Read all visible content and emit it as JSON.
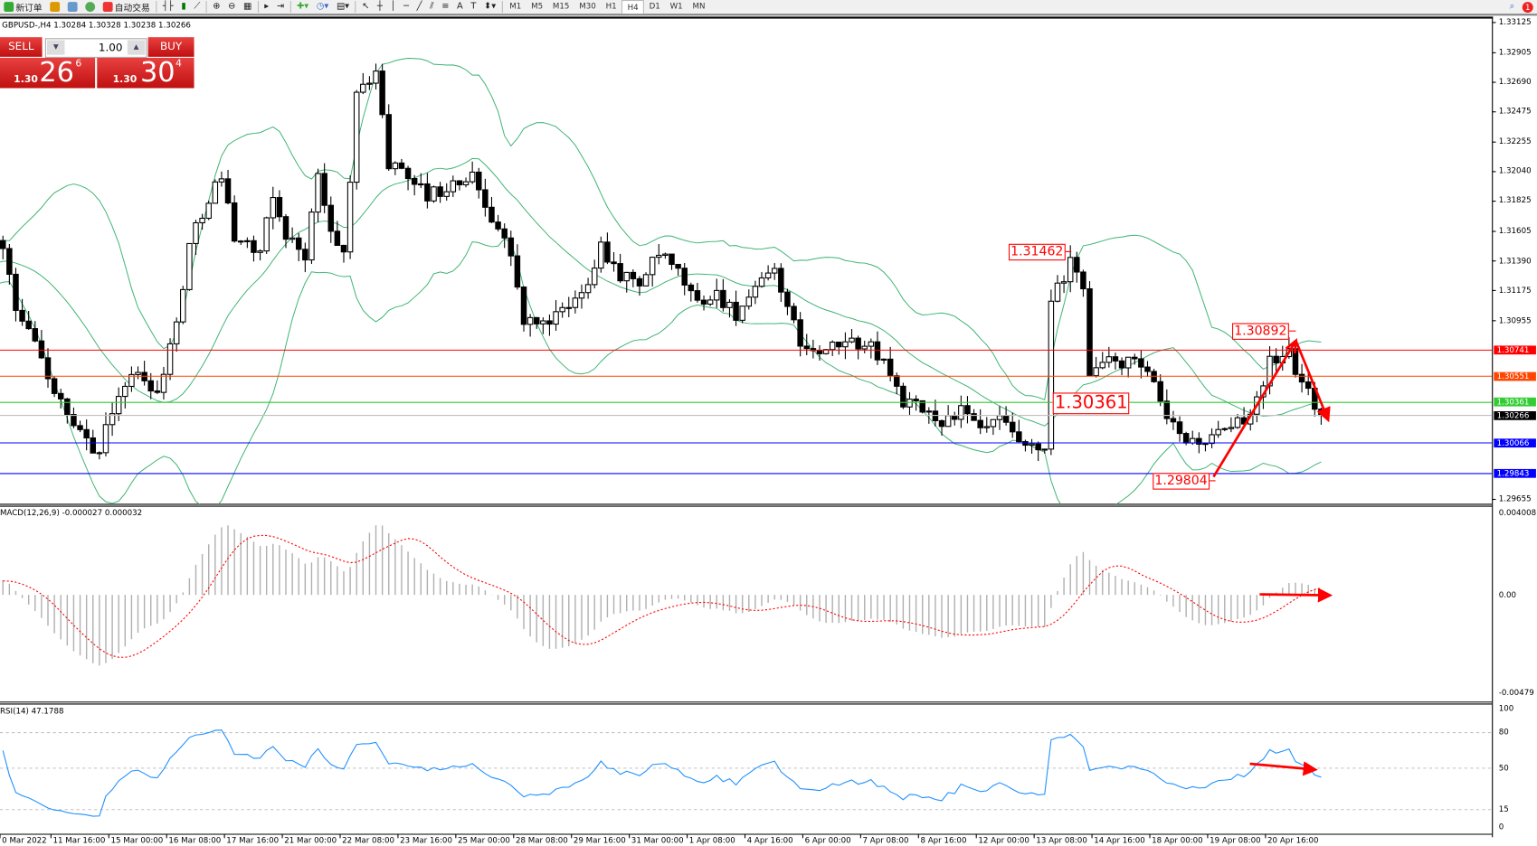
{
  "toolbar": {
    "new_order": "新订单",
    "auto_trading": "自动交易",
    "timeframes": [
      "M1",
      "M5",
      "M15",
      "M30",
      "H1",
      "H4",
      "D1",
      "W1",
      "MN"
    ],
    "active_timeframe": "H4",
    "notification_count": "1"
  },
  "chart": {
    "header": "GBPUSD-,H4  1.30284 1.30328 1.30238 1.30266",
    "symbol": "GBPUSD-",
    "period": "H4"
  },
  "trade_panel": {
    "sell_label": "SELL",
    "buy_label": "BUY",
    "lot": "1.00",
    "sell_small": "1.30",
    "sell_big": "26",
    "sell_sup": "6",
    "buy_small": "1.30",
    "buy_big": "30",
    "buy_sup": "4",
    "color": "#d42020"
  },
  "price_axis": [
    "1.33125",
    "1.32905",
    "1.32690",
    "1.32475",
    "1.32255",
    "1.32040",
    "1.31825",
    "1.31605",
    "1.31390",
    "1.31175",
    "1.30955",
    "1.29655"
  ],
  "levels": [
    {
      "price": "1.30741",
      "color": "#ff0000"
    },
    {
      "price": "1.30551",
      "color": "#ff4500"
    },
    {
      "price": "1.30361",
      "color": "#32cd32"
    },
    {
      "price": "1.30266",
      "color": "#000000",
      "line": "#c0c0c0"
    },
    {
      "price": "1.30066",
      "color": "#0000ff"
    },
    {
      "price": "1.29843",
      "color": "#0000ff"
    }
  ],
  "annotations": [
    "1.31462",
    "1.30361",
    "1.30892",
    "1.29804"
  ],
  "macd": {
    "header": "MACD(12,26,9) -0.000027 0.000032",
    "axis": [
      "0.004008",
      "0.00",
      "-0.00479"
    ],
    "range": [
      -0.00479,
      0.004008
    ]
  },
  "rsi": {
    "header": "RSI(14) 47.1788",
    "axis": [
      "100",
      "80",
      "50",
      "15",
      "0"
    ],
    "levels": [
      80,
      50,
      15
    ],
    "color": "#1e90ff"
  },
  "time_axis": [
    "0 Mar 2022",
    "11 Mar 16:00",
    "15 Mar 00:00",
    "16 Mar 08:00",
    "17 Mar 16:00",
    "21 Mar 00:00",
    "22 Mar 08:00",
    "23 Mar 16:00",
    "25 Mar 00:00",
    "28 Mar 08:00",
    "29 Mar 16:00",
    "31 Mar 00:00",
    "1 Apr 08:00",
    "4 Apr 16:00",
    "6 Apr 00:00",
    "7 Apr 08:00",
    "8 Apr 16:00",
    "12 Apr 00:00",
    "13 Apr 08:00",
    "14 Apr 16:00",
    "18 Apr 00:00",
    "19 Apr 08:00",
    "20 Apr 16:00"
  ],
  "chart_data": {
    "type": "candlestick",
    "price_range": [
      1.29655,
      1.33125
    ],
    "bollinger_color": "#3cb371",
    "close_keypoints": [
      [
        -25,
        1.312
      ],
      [
        -10,
        1.314
      ],
      [
        0,
        1.31508
      ],
      [
        2,
        1.31009
      ],
      [
        5,
        1.30795
      ],
      [
        8,
        1.30439
      ],
      [
        11,
        1.30154
      ],
      [
        15,
        1.30011
      ],
      [
        18,
        1.30439
      ],
      [
        21,
        1.30581
      ],
      [
        24,
        1.30439
      ],
      [
        27,
        1.30938
      ],
      [
        29,
        1.31508
      ],
      [
        32,
        1.31864
      ],
      [
        34,
        1.32006
      ],
      [
        36,
        1.31579
      ],
      [
        40,
        1.31436
      ],
      [
        42,
        1.31864
      ],
      [
        44,
        1.31579
      ],
      [
        47,
        1.31436
      ],
      [
        49,
        1.32006
      ],
      [
        51,
        1.31579
      ],
      [
        53,
        1.31436
      ],
      [
        55,
        1.32576
      ],
      [
        58,
        1.3279
      ],
      [
        60,
        1.32078
      ],
      [
        62,
        1.32078
      ],
      [
        66,
        1.31864
      ],
      [
        70,
        1.31935
      ],
      [
        73,
        1.32006
      ],
      [
        76,
        1.31721
      ],
      [
        79,
        1.31436
      ],
      [
        81,
        1.30938
      ],
      [
        84,
        1.30938
      ],
      [
        87,
        1.31009
      ],
      [
        90,
        1.31151
      ],
      [
        93,
        1.31508
      ],
      [
        96,
        1.31294
      ],
      [
        99,
        1.31223
      ],
      [
        102,
        1.31436
      ],
      [
        105,
        1.31294
      ],
      [
        108,
        1.3108
      ],
      [
        111,
        1.31151
      ],
      [
        114,
        1.31009
      ],
      [
        117,
        1.31151
      ],
      [
        120,
        1.31365
      ],
      [
        122,
        1.31009
      ],
      [
        125,
        1.30724
      ],
      [
        128,
        1.30724
      ],
      [
        131,
        1.30795
      ],
      [
        134,
        1.30795
      ],
      [
        137,
        1.30653
      ],
      [
        140,
        1.30368
      ],
      [
        143,
        1.30296
      ],
      [
        146,
        1.30225
      ],
      [
        149,
        1.30296
      ],
      [
        152,
        1.30154
      ],
      [
        155,
        1.30225
      ],
      [
        159,
        1.30011
      ],
      [
        162,
        1.30011
      ],
      [
        163,
        1.3108
      ],
      [
        166,
        1.31365
      ],
      [
        168,
        1.31223
      ],
      [
        169,
        1.30581
      ],
      [
        172,
        1.30653
      ],
      [
        175,
        1.30653
      ],
      [
        178,
        1.30581
      ],
      [
        181,
        1.30225
      ],
      [
        184,
        1.30083
      ],
      [
        187,
        1.30083
      ],
      [
        191,
        1.30154
      ],
      [
        194,
        1.30296
      ],
      [
        197,
        1.30653
      ],
      [
        200,
        1.30724
      ],
      [
        201,
        1.30581
      ],
      [
        203,
        1.30439
      ],
      [
        205,
        1.30266
      ]
    ]
  }
}
